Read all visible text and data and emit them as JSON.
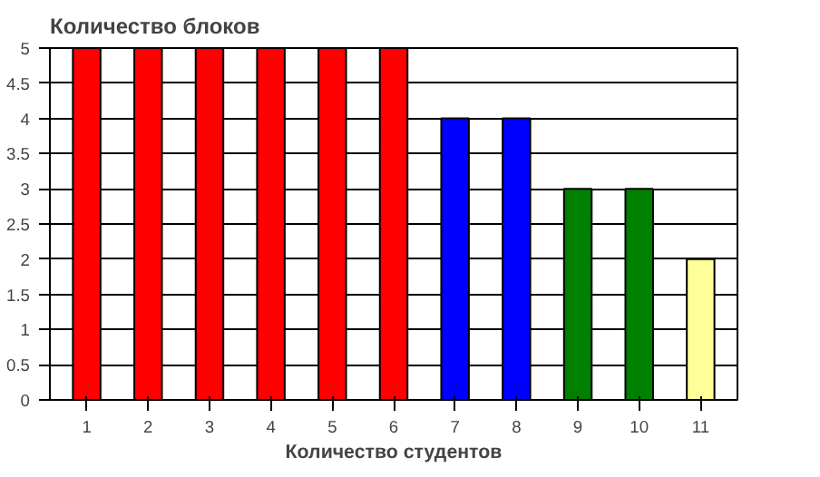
{
  "chart_data": {
    "type": "bar",
    "title": "Количество блоков",
    "xlabel": "Количество студентов",
    "categories": [
      "1",
      "2",
      "3",
      "4",
      "5",
      "6",
      "7",
      "8",
      "9",
      "10",
      "11"
    ],
    "values": [
      5,
      5,
      5,
      5,
      5,
      5,
      4,
      4,
      3,
      3,
      2
    ],
    "colors": [
      "#ff0000",
      "#ff0000",
      "#ff0000",
      "#ff0000",
      "#ff0000",
      "#ff0000",
      "#0000ff",
      "#0000ff",
      "#008000",
      "#008000",
      "#ffff99"
    ],
    "ylim": [
      0,
      5
    ],
    "yticks": [
      0,
      0.5,
      1,
      1.5,
      2,
      2.5,
      3,
      3.5,
      4,
      4.5,
      5
    ],
    "grid": "y"
  }
}
